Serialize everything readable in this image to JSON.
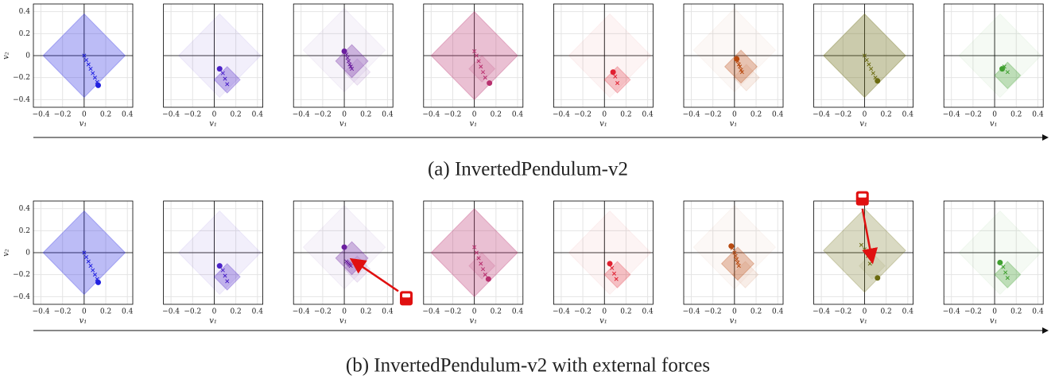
{
  "captions": [
    "(a) InvertedPendulum-v2",
    "(b) InvertedPendulum-v2 with external forces"
  ],
  "chart_data": [
    {
      "type": "scatter",
      "color": "#2020e0",
      "xlabel": "v₁",
      "ylabel": "v₂",
      "show_yticklabels": true,
      "xlim": [
        -0.47,
        0.45
      ],
      "ylim": [
        -0.47,
        0.47
      ],
      "xticks": [
        {
          "value": -0.4,
          "label": "−0.4"
        },
        {
          "value": -0.2,
          "label": "−0.2"
        },
        0.0,
        0.2,
        0.4
      ],
      "yticks": [
        {
          "value": -0.4,
          "label": "−0.4"
        },
        {
          "value": -0.2,
          "label": "−0.2"
        },
        0.0,
        0.2,
        0.4
      ],
      "diamonds": [
        {
          "x": 0,
          "y": 0,
          "r": 0.38,
          "opacity": 0.3
        }
      ],
      "points": {
        "x": [
          0,
          0.02,
          0.04,
          0.06,
          0.08,
          0.1,
          0.12
        ],
        "y": [
          0,
          -0.04,
          -0.08,
          -0.12,
          -0.16,
          -0.2,
          -0.24
        ]
      },
      "dot": [
        0.13,
        -0.27
      ]
    },
    {
      "type": "scatter",
      "color": "#4b22c8",
      "xlabel": "v₁",
      "show_yticklabels": false,
      "xlim": [
        -0.47,
        0.45
      ],
      "ylim": [
        -0.47,
        0.47
      ],
      "xticks": [
        {
          "value": -0.4,
          "label": "−0.4"
        },
        {
          "value": -0.2,
          "label": "−0.2"
        },
        0.0,
        0.2,
        0.4
      ],
      "yticks": [
        {
          "value": -0.4,
          "label": "−0.4"
        },
        {
          "value": -0.2,
          "label": "−0.2"
        },
        0.0,
        0.2,
        0.4
      ],
      "diamonds": [
        {
          "x": 0.05,
          "y": 0,
          "r": 0.38,
          "opacity": 0.07
        },
        {
          "x": 0.12,
          "y": -0.22,
          "r": 0.12,
          "opacity": 0.3
        }
      ],
      "points": {
        "x": [
          0.08,
          0.1,
          0.12
        ],
        "y": [
          -0.16,
          -0.21,
          -0.26
        ]
      },
      "dot": [
        0.05,
        -0.12
      ]
    },
    {
      "type": "scatter",
      "color": "#6b1f9f",
      "xlabel": "v₁",
      "show_yticklabels": false,
      "xlim": [
        -0.47,
        0.45
      ],
      "ylim": [
        -0.47,
        0.47
      ],
      "xticks": [
        {
          "value": -0.4,
          "label": "−0.4"
        },
        {
          "value": -0.2,
          "label": "−0.2"
        },
        0.0,
        0.2,
        0.4
      ],
      "yticks": [
        {
          "value": -0.4,
          "label": "−0.4"
        },
        {
          "value": -0.2,
          "label": "−0.2"
        },
        0.0,
        0.2,
        0.4
      ],
      "diamonds": [
        {
          "x": 0,
          "y": 0.05,
          "r": 0.38,
          "opacity": 0.05
        },
        {
          "x": 0.07,
          "y": -0.05,
          "r": 0.15,
          "opacity": 0.3
        },
        {
          "x": 0.12,
          "y": -0.15,
          "r": 0.12,
          "opacity": 0.1
        }
      ],
      "points": {
        "x": [
          0.02,
          0.03,
          0.04,
          0.05,
          0.06,
          0.07
        ],
        "y": [
          0.01,
          -0.02,
          -0.05,
          -0.08,
          -0.1,
          -0.12
        ]
      },
      "dot": [
        0,
        0.04
      ]
    },
    {
      "type": "scatter",
      "color": "#b8306e",
      "xlabel": "v₁",
      "show_yticklabels": false,
      "xlim": [
        -0.47,
        0.45
      ],
      "ylim": [
        -0.47,
        0.47
      ],
      "xticks": [
        {
          "value": -0.4,
          "label": "−0.4"
        },
        {
          "value": -0.2,
          "label": "−0.2"
        },
        0.0,
        0.2,
        0.4
      ],
      "yticks": [
        {
          "value": -0.4,
          "label": "−0.4"
        },
        {
          "value": -0.2,
          "label": "−0.2"
        },
        0.0,
        0.2,
        0.4
      ],
      "diamonds": [
        {
          "x": 0,
          "y": 0,
          "r": 0.4,
          "opacity": 0.3
        },
        {
          "x": 0.07,
          "y": -0.12,
          "r": 0.12,
          "opacity": 0.15
        }
      ],
      "points": {
        "x": [
          0,
          0.02,
          0.04,
          0.06,
          0.08,
          0.1
        ],
        "y": [
          0.04,
          0,
          -0.05,
          -0.1,
          -0.15,
          -0.2
        ]
      },
      "dot": [
        0.14,
        -0.25
      ]
    },
    {
      "type": "scatter",
      "color": "#e02030",
      "xlabel": "v₁",
      "show_yticklabels": false,
      "xlim": [
        -0.47,
        0.45
      ],
      "ylim": [
        -0.47,
        0.47
      ],
      "xticks": [
        {
          "value": -0.4,
          "label": "−0.4"
        },
        {
          "value": -0.2,
          "label": "−0.2"
        },
        0.0,
        0.2,
        0.4
      ],
      "yticks": [
        {
          "value": -0.4,
          "label": "−0.4"
        },
        {
          "value": -0.2,
          "label": "−0.2"
        },
        0.0,
        0.2,
        0.4
      ],
      "diamonds": [
        {
          "x": 0.05,
          "y": 0,
          "r": 0.38,
          "opacity": 0.05
        },
        {
          "x": 0.12,
          "y": -0.22,
          "r": 0.12,
          "opacity": 0.25
        }
      ],
      "points": {
        "x": [
          0.1,
          0.12
        ],
        "y": [
          -0.19,
          -0.25
        ]
      },
      "dot": [
        0.08,
        -0.15
      ]
    },
    {
      "type": "scatter",
      "color": "#b84a10",
      "xlabel": "v₁",
      "show_yticklabels": false,
      "xlim": [
        -0.47,
        0.45
      ],
      "ylim": [
        -0.47,
        0.47
      ],
      "xticks": [
        {
          "value": -0.4,
          "label": "−0.4"
        },
        {
          "value": -0.2,
          "label": "−0.2"
        },
        0.0,
        0.2,
        0.4
      ],
      "yticks": [
        {
          "value": -0.4,
          "label": "−0.4"
        },
        {
          "value": -0.2,
          "label": "−0.2"
        },
        0.0,
        0.2,
        0.4
      ],
      "diamonds": [
        {
          "x": 0,
          "y": 0.05,
          "r": 0.38,
          "opacity": 0.04
        },
        {
          "x": 0.06,
          "y": -0.1,
          "r": 0.15,
          "opacity": 0.3
        },
        {
          "x": 0.11,
          "y": -0.2,
          "r": 0.12,
          "opacity": 0.1
        }
      ],
      "points": {
        "x": [
          0.03,
          0.04,
          0.05,
          0.06,
          0.07
        ],
        "y": [
          -0.05,
          -0.08,
          -0.1,
          -0.13,
          -0.15
        ]
      },
      "dot": [
        0.02,
        -0.03
      ]
    },
    {
      "type": "scatter",
      "color": "#6b6b10",
      "xlabel": "v₁",
      "show_yticklabels": false,
      "xlim": [
        -0.47,
        0.45
      ],
      "ylim": [
        -0.47,
        0.47
      ],
      "xticks": [
        {
          "value": -0.4,
          "label": "−0.4"
        },
        {
          "value": -0.2,
          "label": "−0.2"
        },
        0.0,
        0.2,
        0.4
      ],
      "yticks": [
        {
          "value": -0.4,
          "label": "−0.4"
        },
        {
          "value": -0.2,
          "label": "−0.2"
        },
        0.0,
        0.2,
        0.4
      ],
      "diamonds": [
        {
          "x": 0,
          "y": 0,
          "r": 0.38,
          "opacity": 0.35
        }
      ],
      "points": {
        "x": [
          0,
          0.02,
          0.04,
          0.06,
          0.08,
          0.1
        ],
        "y": [
          0,
          -0.04,
          -0.08,
          -0.12,
          -0.16,
          -0.2
        ]
      },
      "dot": [
        0.12,
        -0.23
      ]
    },
    {
      "type": "scatter",
      "color": "#40a030",
      "xlabel": "v₁",
      "show_yticklabels": false,
      "xlim": [
        -0.47,
        0.45
      ],
      "ylim": [
        -0.47,
        0.47
      ],
      "xticks": [
        {
          "value": -0.4,
          "label": "−0.4"
        },
        {
          "value": -0.2,
          "label": "−0.2"
        },
        0.0,
        0.2,
        0.4
      ],
      "yticks": [
        {
          "value": -0.4,
          "label": "−0.4"
        },
        {
          "value": -0.2,
          "label": "−0.2"
        },
        0.0,
        0.2,
        0.4
      ],
      "diamonds": [
        {
          "x": 0.05,
          "y": 0,
          "r": 0.38,
          "opacity": 0.05
        },
        {
          "x": 0.12,
          "y": -0.18,
          "r": 0.12,
          "opacity": 0.3
        }
      ],
      "points": {
        "x": [
          0.09,
          0.12
        ],
        "y": [
          -0.1,
          -0.15
        ]
      },
      "dot": [
        0.07,
        -0.12
      ]
    },
    {
      "type": "scatter",
      "color": "#2020e0",
      "xlabel": "v₁",
      "ylabel": "v₂",
      "show_yticklabels": true,
      "xlim": [
        -0.47,
        0.45
      ],
      "ylim": [
        -0.47,
        0.47
      ],
      "xticks": [
        {
          "value": -0.4,
          "label": "−0.4"
        },
        {
          "value": -0.2,
          "label": "−0.2"
        },
        0.0,
        0.2,
        0.4
      ],
      "yticks": [
        {
          "value": -0.4,
          "label": "−0.4"
        },
        {
          "value": -0.2,
          "label": "−0.2"
        },
        0.0,
        0.2,
        0.4
      ],
      "diamonds": [
        {
          "x": 0,
          "y": 0,
          "r": 0.38,
          "opacity": 0.3
        }
      ],
      "points": {
        "x": [
          0,
          0.02,
          0.04,
          0.06,
          0.08,
          0.1,
          0.12
        ],
        "y": [
          0,
          -0.04,
          -0.08,
          -0.12,
          -0.16,
          -0.2,
          -0.24
        ]
      },
      "dot": [
        0.13,
        -0.27
      ]
    },
    {
      "type": "scatter",
      "color": "#4b22c8",
      "xlabel": "v₁",
      "show_yticklabels": false,
      "xlim": [
        -0.47,
        0.45
      ],
      "ylim": [
        -0.47,
        0.47
      ],
      "xticks": [
        {
          "value": -0.4,
          "label": "−0.4"
        },
        {
          "value": -0.2,
          "label": "−0.2"
        },
        0.0,
        0.2,
        0.4
      ],
      "yticks": [
        {
          "value": -0.4,
          "label": "−0.4"
        },
        {
          "value": -0.2,
          "label": "−0.2"
        },
        0.0,
        0.2,
        0.4
      ],
      "diamonds": [
        {
          "x": 0.05,
          "y": 0,
          "r": 0.38,
          "opacity": 0.07
        },
        {
          "x": 0.12,
          "y": -0.22,
          "r": 0.12,
          "opacity": 0.3
        }
      ],
      "points": {
        "x": [
          0.08,
          0.1,
          0.12
        ],
        "y": [
          -0.16,
          -0.21,
          -0.26
        ]
      },
      "dot": [
        0.05,
        -0.12
      ]
    },
    {
      "type": "scatter",
      "color": "#6b1f9f",
      "xlabel": "v₁",
      "show_yticklabels": false,
      "xlim": [
        -0.47,
        0.45
      ],
      "ylim": [
        -0.47,
        0.47
      ],
      "xticks": [
        {
          "value": -0.4,
          "label": "−0.4"
        },
        {
          "value": -0.2,
          "label": "−0.2"
        },
        0.0,
        0.2,
        0.4
      ],
      "yticks": [
        {
          "value": -0.4,
          "label": "−0.4"
        },
        {
          "value": -0.2,
          "label": "−0.2"
        },
        0.0,
        0.2,
        0.4
      ],
      "diamonds": [
        {
          "x": 0,
          "y": 0.05,
          "r": 0.38,
          "opacity": 0.05
        },
        {
          "x": 0.07,
          "y": -0.05,
          "r": 0.15,
          "opacity": 0.3
        },
        {
          "x": 0.12,
          "y": -0.15,
          "r": 0.12,
          "opacity": 0.1
        }
      ],
      "points": {
        "x": [
          0.02,
          0.03,
          0.04,
          0.05,
          0.06
        ],
        "y": [
          -0.08,
          -0.09,
          -0.1,
          -0.11,
          -0.12
        ]
      },
      "dot": [
        0,
        0.05
      ],
      "arrow": [
        0.5,
        -0.35,
        0.08,
        -0.07
      ]
    },
    {
      "type": "scatter",
      "color": "#b8306e",
      "xlabel": "v₁",
      "show_yticklabels": false,
      "xlim": [
        -0.47,
        0.45
      ],
      "ylim": [
        -0.47,
        0.47
      ],
      "xticks": [
        {
          "value": -0.4,
          "label": "−0.4"
        },
        {
          "value": -0.2,
          "label": "−0.2"
        },
        0.0,
        0.2,
        0.4
      ],
      "yticks": [
        {
          "value": -0.4,
          "label": "−0.4"
        },
        {
          "value": -0.2,
          "label": "−0.2"
        },
        0.0,
        0.2,
        0.4
      ],
      "diamonds": [
        {
          "x": 0,
          "y": 0,
          "r": 0.4,
          "opacity": 0.3
        },
        {
          "x": 0.07,
          "y": -0.12,
          "r": 0.12,
          "opacity": 0.15
        }
      ],
      "points": {
        "x": [
          0,
          0.02,
          0.04,
          0.06,
          0.08,
          0.1
        ],
        "y": [
          0.05,
          0,
          -0.05,
          -0.1,
          -0.15,
          -0.2
        ]
      },
      "dot": [
        0.13,
        -0.24
      ]
    },
    {
      "type": "scatter",
      "color": "#e02030",
      "xlabel": "v₁",
      "show_yticklabels": false,
      "xlim": [
        -0.47,
        0.45
      ],
      "ylim": [
        -0.47,
        0.47
      ],
      "xticks": [
        {
          "value": -0.4,
          "label": "−0.4"
        },
        {
          "value": -0.2,
          "label": "−0.2"
        },
        0.0,
        0.2,
        0.4
      ],
      "yticks": [
        {
          "value": -0.4,
          "label": "−0.4"
        },
        {
          "value": -0.2,
          "label": "−0.2"
        },
        0.0,
        0.2,
        0.4
      ],
      "diamonds": [
        {
          "x": 0.05,
          "y": 0,
          "r": 0.38,
          "opacity": 0.05
        },
        {
          "x": 0.12,
          "y": -0.2,
          "r": 0.12,
          "opacity": 0.25
        }
      ],
      "points": {
        "x": [
          0.07,
          0.09,
          0.11
        ],
        "y": [
          -0.14,
          -0.19,
          -0.24
        ]
      },
      "dot": [
        0.05,
        -0.1
      ]
    },
    {
      "type": "scatter",
      "color": "#b84a10",
      "xlabel": "v₁",
      "show_yticklabels": false,
      "xlim": [
        -0.47,
        0.45
      ],
      "ylim": [
        -0.47,
        0.47
      ],
      "xticks": [
        {
          "value": -0.4,
          "label": "−0.4"
        },
        {
          "value": -0.2,
          "label": "−0.2"
        },
        0.0,
        0.2,
        0.4
      ],
      "yticks": [
        {
          "value": -0.4,
          "label": "−0.4"
        },
        {
          "value": -0.2,
          "label": "−0.2"
        },
        0.0,
        0.2,
        0.4
      ],
      "diamonds": [
        {
          "x": 0,
          "y": 0.05,
          "r": 0.38,
          "opacity": 0.04
        },
        {
          "x": 0.03,
          "y": -0.1,
          "r": 0.15,
          "opacity": 0.3
        },
        {
          "x": 0.1,
          "y": -0.2,
          "r": 0.12,
          "opacity": 0.1
        }
      ],
      "points": {
        "x": [
          -0.02,
          0,
          0.01,
          0.02,
          0.03,
          0.04
        ],
        "y": [
          0.04,
          0,
          -0.03,
          -0.06,
          -0.09,
          -0.12
        ]
      },
      "dot": [
        -0.03,
        0.06
      ]
    },
    {
      "type": "scatter",
      "color": "#6b6b10",
      "xlabel": "v₁",
      "show_yticklabels": false,
      "xlim": [
        -0.47,
        0.45
      ],
      "ylim": [
        -0.47,
        0.47
      ],
      "xticks": [
        {
          "value": -0.4,
          "label": "−0.4"
        },
        {
          "value": -0.2,
          "label": "−0.2"
        },
        0.0,
        0.2,
        0.4
      ],
      "yticks": [
        {
          "value": -0.4,
          "label": "−0.4"
        },
        {
          "value": -0.2,
          "label": "−0.2"
        },
        0.0,
        0.2,
        0.4
      ],
      "diamonds": [
        {
          "x": 0,
          "y": 0.02,
          "r": 0.38,
          "opacity": 0.25
        },
        {
          "x": 0.07,
          "y": -0.12,
          "r": 0.12,
          "opacity": 0.08
        }
      ],
      "points": {
        "x": [
          -0.03,
          0,
          0.03,
          0.05
        ],
        "y": [
          0.07,
          0.03,
          -0.03,
          -0.1
        ]
      },
      "dot": [
        0.12,
        -0.23
      ],
      "arrow": [
        -0.02,
        0.4,
        0.07,
        -0.07
      ]
    },
    {
      "type": "scatter",
      "color": "#40a030",
      "xlabel": "v₁",
      "show_yticklabels": false,
      "xlim": [
        -0.47,
        0.45
      ],
      "ylim": [
        -0.47,
        0.47
      ],
      "xticks": [
        {
          "value": -0.4,
          "label": "−0.4"
        },
        {
          "value": -0.2,
          "label": "−0.2"
        },
        0.0,
        0.2,
        0.4
      ],
      "yticks": [
        {
          "value": -0.4,
          "label": "−0.4"
        },
        {
          "value": -0.2,
          "label": "−0.2"
        },
        0.0,
        0.2,
        0.4
      ],
      "diamonds": [
        {
          "x": 0.05,
          "y": 0,
          "r": 0.38,
          "opacity": 0.05
        },
        {
          "x": 0.12,
          "y": -0.2,
          "r": 0.12,
          "opacity": 0.3
        }
      ],
      "points": {
        "x": [
          0.08,
          0.1,
          0.12
        ],
        "y": [
          -0.13,
          -0.18,
          -0.23
        ]
      },
      "dot": [
        0.05,
        -0.09
      ]
    }
  ]
}
